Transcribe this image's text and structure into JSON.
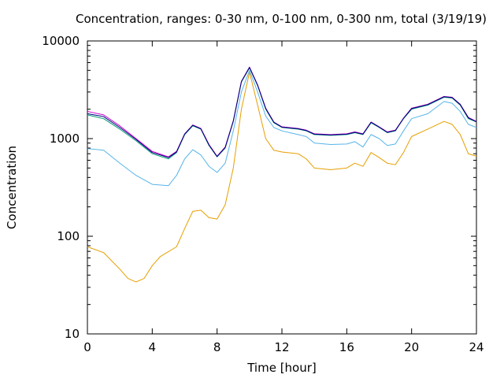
{
  "chart_data": {
    "type": "line",
    "title": "Concentration, ranges: 0-30 nm, 0-100 nm, 0-300 nm, total (3/19/19)",
    "xlabel": "Time [hour]",
    "ylabel": "Concentration",
    "xlim": [
      0,
      24
    ],
    "ylim": [
      10,
      10000
    ],
    "yscale": "log",
    "grid": false,
    "legend": "none",
    "x_ticks": [
      "0",
      "4",
      "8",
      "12",
      "16",
      "20",
      "24"
    ],
    "y_ticks": [
      "10",
      "100",
      "1000",
      "10000"
    ],
    "series": [
      {
        "color": "#e69f00",
        "points": [
          [
            0,
            78
          ],
          [
            1,
            68
          ],
          [
            2,
            46
          ],
          [
            2.5,
            37
          ],
          [
            3,
            34
          ],
          [
            3.5,
            37
          ],
          [
            4,
            50
          ],
          [
            4.5,
            62
          ],
          [
            5.5,
            78
          ],
          [
            6,
            120
          ],
          [
            6.5,
            180
          ],
          [
            7,
            185
          ],
          [
            7.5,
            155
          ],
          [
            8,
            150
          ],
          [
            8.5,
            210
          ],
          [
            9,
            500
          ],
          [
            9.5,
            2000
          ],
          [
            10,
            4800
          ],
          [
            10.5,
            2200
          ],
          [
            11,
            1000
          ],
          [
            11.5,
            760
          ],
          [
            12,
            730
          ],
          [
            13,
            700
          ],
          [
            13.5,
            620
          ],
          [
            14,
            500
          ],
          [
            15,
            480
          ],
          [
            16,
            500
          ],
          [
            16.5,
            560
          ],
          [
            17,
            520
          ],
          [
            17.5,
            720
          ],
          [
            18,
            640
          ],
          [
            18.5,
            560
          ],
          [
            19,
            540
          ],
          [
            19.5,
            720
          ],
          [
            20,
            1050
          ],
          [
            21,
            1250
          ],
          [
            22,
            1500
          ],
          [
            22.5,
            1400
          ],
          [
            23,
            1100
          ],
          [
            23.5,
            700
          ],
          [
            24,
            660
          ]
        ]
      },
      {
        "color": "#56b4e9",
        "points": [
          [
            0,
            790
          ],
          [
            1,
            760
          ],
          [
            2,
            560
          ],
          [
            3,
            420
          ],
          [
            4,
            340
          ],
          [
            5,
            330
          ],
          [
            5.5,
            420
          ],
          [
            6,
            620
          ],
          [
            6.5,
            770
          ],
          [
            7,
            680
          ],
          [
            7.5,
            520
          ],
          [
            8,
            450
          ],
          [
            8.5,
            560
          ],
          [
            9,
            1200
          ],
          [
            9.5,
            3000
          ],
          [
            10,
            5000
          ],
          [
            10.5,
            3000
          ],
          [
            11,
            1700
          ],
          [
            11.5,
            1300
          ],
          [
            12,
            1200
          ],
          [
            13,
            1100
          ],
          [
            13.5,
            1050
          ],
          [
            14,
            900
          ],
          [
            15,
            870
          ],
          [
            16,
            880
          ],
          [
            16.5,
            930
          ],
          [
            17,
            820
          ],
          [
            17.5,
            1100
          ],
          [
            18,
            1000
          ],
          [
            18.5,
            850
          ],
          [
            19,
            880
          ],
          [
            19.5,
            1200
          ],
          [
            20,
            1600
          ],
          [
            21,
            1800
          ],
          [
            22,
            2400
          ],
          [
            22.5,
            2300
          ],
          [
            23,
            1900
          ],
          [
            23.5,
            1400
          ],
          [
            24,
            1300
          ]
        ]
      },
      {
        "color": "#009e73",
        "points": [
          [
            0,
            1750
          ],
          [
            1,
            1600
          ],
          [
            2,
            1250
          ],
          [
            3,
            950
          ],
          [
            4,
            700
          ],
          [
            5,
            620
          ],
          [
            5.5,
            720
          ],
          [
            6,
            1100
          ],
          [
            6.5,
            1350
          ],
          [
            7,
            1250
          ],
          [
            7.5,
            850
          ],
          [
            8,
            650
          ],
          [
            8.5,
            800
          ],
          [
            9,
            1500
          ],
          [
            9.5,
            3800
          ],
          [
            10,
            5300
          ],
          [
            10.5,
            3500
          ],
          [
            11,
            2000
          ],
          [
            11.5,
            1450
          ],
          [
            12,
            1300
          ],
          [
            13,
            1250
          ],
          [
            13.5,
            1200
          ],
          [
            14,
            1100
          ],
          [
            15,
            1080
          ],
          [
            16,
            1100
          ],
          [
            16.5,
            1150
          ],
          [
            17,
            1100
          ],
          [
            17.5,
            1450
          ],
          [
            18,
            1300
          ],
          [
            18.5,
            1150
          ],
          [
            19,
            1200
          ],
          [
            19.5,
            1600
          ],
          [
            20,
            2000
          ],
          [
            21,
            2200
          ],
          [
            22,
            2650
          ],
          [
            22.5,
            2600
          ],
          [
            23,
            2200
          ],
          [
            23.5,
            1600
          ],
          [
            24,
            1480
          ]
        ]
      },
      {
        "color": "#cc00cc",
        "points": [
          [
            0,
            1900
          ],
          [
            1,
            1750
          ],
          [
            2,
            1350
          ],
          [
            3,
            1000
          ],
          [
            4,
            740
          ],
          [
            5,
            650
          ],
          [
            5.5,
            740
          ],
          [
            6,
            1120
          ],
          [
            6.5,
            1380
          ],
          [
            7,
            1270
          ],
          [
            7.5,
            870
          ],
          [
            8,
            660
          ],
          [
            8.5,
            820
          ],
          [
            9,
            1520
          ],
          [
            9.5,
            3850
          ],
          [
            10,
            5400
          ],
          [
            10.5,
            3550
          ],
          [
            11,
            2050
          ],
          [
            11.5,
            1480
          ],
          [
            12,
            1320
          ],
          [
            13,
            1270
          ],
          [
            13.5,
            1220
          ],
          [
            14,
            1120
          ],
          [
            15,
            1100
          ],
          [
            16,
            1120
          ],
          [
            16.5,
            1170
          ],
          [
            17,
            1120
          ],
          [
            17.5,
            1480
          ],
          [
            18,
            1320
          ],
          [
            18.5,
            1170
          ],
          [
            19,
            1220
          ],
          [
            19.5,
            1620
          ],
          [
            20,
            2050
          ],
          [
            21,
            2250
          ],
          [
            22,
            2700
          ],
          [
            22.5,
            2650
          ],
          [
            23,
            2250
          ],
          [
            23.5,
            1650
          ],
          [
            24,
            1500
          ]
        ]
      },
      {
        "color": "#000080",
        "points": [
          [
            0,
            1800
          ],
          [
            1,
            1680
          ],
          [
            2,
            1300
          ],
          [
            3,
            980
          ],
          [
            4,
            720
          ],
          [
            5,
            640
          ],
          [
            5.5,
            730
          ],
          [
            6,
            1110
          ],
          [
            6.5,
            1370
          ],
          [
            7,
            1260
          ],
          [
            7.5,
            860
          ],
          [
            8,
            655
          ],
          [
            8.5,
            810
          ],
          [
            9,
            1510
          ],
          [
            9.5,
            3830
          ],
          [
            10,
            5350
          ],
          [
            10.5,
            3520
          ],
          [
            11,
            2030
          ],
          [
            11.5,
            1470
          ],
          [
            12,
            1310
          ],
          [
            13,
            1260
          ],
          [
            13.5,
            1210
          ],
          [
            14,
            1110
          ],
          [
            15,
            1090
          ],
          [
            16,
            1110
          ],
          [
            16.5,
            1160
          ],
          [
            17,
            1110
          ],
          [
            17.5,
            1470
          ],
          [
            18,
            1310
          ],
          [
            18.5,
            1160
          ],
          [
            19,
            1210
          ],
          [
            19.5,
            1610
          ],
          [
            20,
            2030
          ],
          [
            21,
            2230
          ],
          [
            22,
            2680
          ],
          [
            22.5,
            2630
          ],
          [
            23,
            2230
          ],
          [
            23.5,
            1630
          ],
          [
            24,
            1490
          ]
        ]
      }
    ]
  }
}
